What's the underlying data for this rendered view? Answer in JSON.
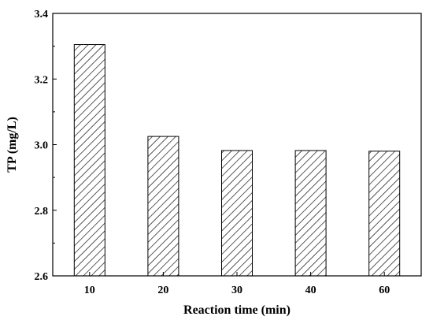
{
  "chart_data": {
    "type": "bar",
    "categories": [
      "10",
      "20",
      "30",
      "40",
      "60"
    ],
    "values": [
      3.305,
      3.025,
      2.982,
      2.982,
      2.98
    ],
    "xlabel": "Reaction time (min)",
    "ylabel": "TP (mg/L)",
    "ylim": [
      2.6,
      3.4
    ],
    "yticks": [
      "2.6",
      "2.8",
      "3.0",
      "3.2",
      "3.4"
    ],
    "bar_pattern": "diagonal-hatch",
    "grid": false,
    "legend": "none"
  }
}
